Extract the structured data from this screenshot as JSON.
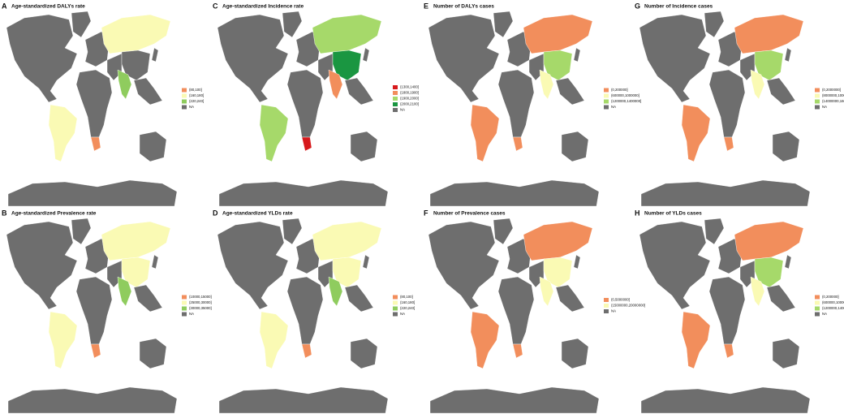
{
  "panels": [
    {
      "letter": "A",
      "title": "Age-standardized DALYs rate",
      "legend": [
        {
          "label": "(80,100]",
          "color": "#f28e5c"
        },
        {
          "label": "(160,180]",
          "color": "#fafab4"
        },
        {
          "label": "(220,240]",
          "color": "#8fcc5e"
        },
        {
          "label": "NA",
          "color": "#6e6e6e"
        }
      ]
    },
    {
      "letter": "B",
      "title": "Age-standardized Prevalence rate",
      "legend": [
        {
          "label": "(10000,15000]",
          "color": "#f28e5c"
        },
        {
          "label": "(25000,30000]",
          "color": "#fafab4"
        },
        {
          "label": "(30000,35000]",
          "color": "#8fcc5e"
        },
        {
          "label": "NA",
          "color": "#6e6e6e"
        }
      ]
    },
    {
      "letter": "C",
      "title": "Age-standardized Incidence rate",
      "legend": [
        {
          "label": "(1300,1400]",
          "color": "#d7191c"
        },
        {
          "label": "(1800,1900]",
          "color": "#f28e5c"
        },
        {
          "label": "(1900,2000]",
          "color": "#a6d96a"
        },
        {
          "label": "(2000,2100]",
          "color": "#1a9641"
        },
        {
          "label": "NA",
          "color": "#6e6e6e"
        }
      ]
    },
    {
      "letter": "D",
      "title": "Age-standardized YLDs rate",
      "legend": [
        {
          "label": "(80,100]",
          "color": "#f28e5c"
        },
        {
          "label": "(160,180]",
          "color": "#fafab4"
        },
        {
          "label": "(220,240]",
          "color": "#8fcc5e"
        },
        {
          "label": "NA",
          "color": "#6e6e6e"
        }
      ]
    },
    {
      "letter": "E",
      "title": "Number of DALYs cases",
      "legend": [
        {
          "label": "(0,200000]",
          "color": "#f28e5c"
        },
        {
          "label": "(600000,1000000]",
          "color": "#fafab4"
        },
        {
          "label": "(1200000,1400000]",
          "color": "#a6d96a"
        },
        {
          "label": "NA",
          "color": "#6e6e6e"
        }
      ]
    },
    {
      "letter": "F",
      "title": "Number of Prevalence cases",
      "legend": [
        {
          "label": "(0,5000000]",
          "color": "#f28e5c"
        },
        {
          "label": "(15000000,20000000]",
          "color": "#fafab4"
        },
        {
          "label": "NA",
          "color": "#6e6e6e"
        }
      ]
    },
    {
      "letter": "G",
      "title": "Number of Incidence cases",
      "legend": [
        {
          "label": "(0,2000000]",
          "color": "#f28e5c"
        },
        {
          "label": "(8000000,10000000]",
          "color": "#fafab4"
        },
        {
          "label": "(14000000,16000000]",
          "color": "#a6d96a"
        },
        {
          "label": "NA",
          "color": "#6e6e6e"
        }
      ]
    },
    {
      "letter": "H",
      "title": "Number of YLDs cases",
      "legend": [
        {
          "label": "(0,200000]",
          "color": "#f28e5c"
        },
        {
          "label": "(600000,1000000]",
          "color": "#fafab4"
        },
        {
          "label": "(1200000,1400000]",
          "color": "#a6d96a"
        },
        {
          "label": "NA",
          "color": "#6e6e6e"
        }
      ]
    }
  ]
}
